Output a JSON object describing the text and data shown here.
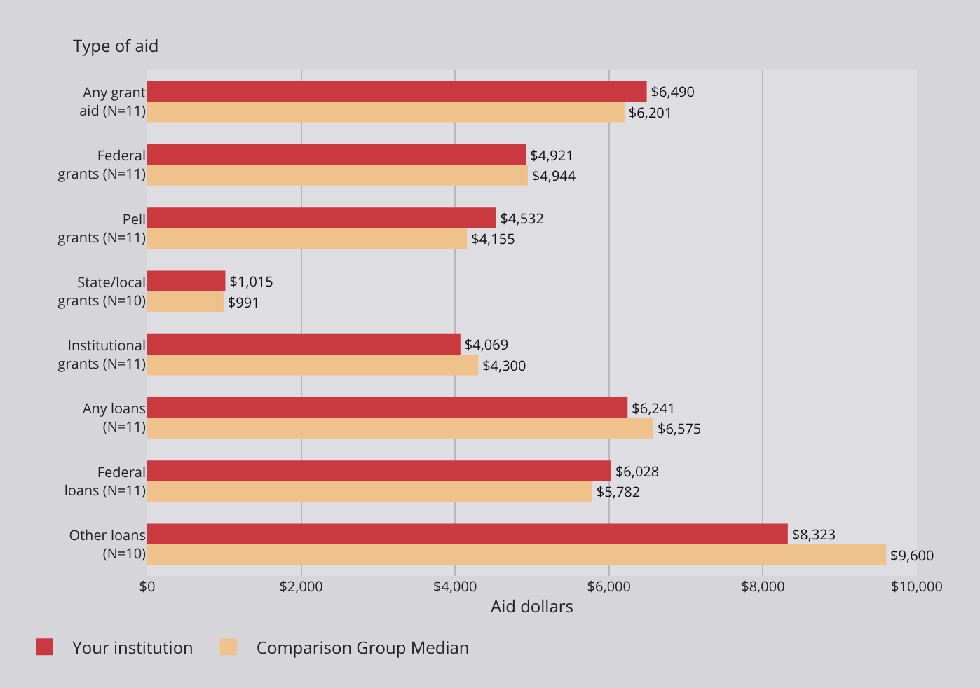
{
  "chart_data": {
    "type": "bar",
    "orientation": "horizontal",
    "ylabel": "Type of aid",
    "xlabel": "Aid dollars",
    "categories": [
      "Any grant\naid (N=11)",
      "Federal\ngrants (N=11)",
      "Pell\ngrants (N=11)",
      "State/local\ngrants (N=10)",
      "Institutional\ngrants (N=11)",
      "Any loans\n(N=11)",
      "Federal\nloans (N=11)",
      "Other loans\n(N=10)"
    ],
    "series": [
      {
        "name": "Your institution",
        "color": "#c9393f",
        "values": [
          6490,
          4921,
          4532,
          1015,
          4069,
          6241,
          6028,
          8323
        ],
        "value_labels": [
          "$6,490",
          "$4,921",
          "$4,532",
          "$1,015",
          "$4,069",
          "$6,241",
          "$6,028",
          "$8,323"
        ]
      },
      {
        "name": "Comparison Group Median",
        "color": "#efc28c",
        "values": [
          6201,
          4944,
          4155,
          991,
          4300,
          6575,
          5782,
          9600
        ],
        "value_labels": [
          "$6,201",
          "$4,944",
          "$4,155",
          "$991",
          "$4,300",
          "$6,575",
          "$5,782",
          "$9,600"
        ]
      }
    ],
    "xlim": [
      0,
      10000
    ],
    "xticks": [
      {
        "value": 0,
        "label": "$0"
      },
      {
        "value": 2000,
        "label": "$2,000"
      },
      {
        "value": 4000,
        "label": "$4,000"
      },
      {
        "value": 6000,
        "label": "$6,000"
      },
      {
        "value": 8000,
        "label": "$8,000"
      },
      {
        "value": 10000,
        "label": "$10,000"
      }
    ],
    "grid": "x",
    "legend": "bottom left"
  }
}
